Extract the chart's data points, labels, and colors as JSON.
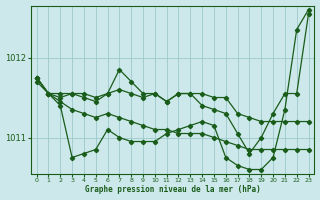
{
  "title": "Graphe pression niveau de la mer (hPa)",
  "bg_color": "#cce8ea",
  "grid_color": "#9cc8ca",
  "line_color": "#1a5c1a",
  "ylim": [
    1010.55,
    1012.65
  ],
  "xlim": [
    -0.5,
    23.5
  ],
  "yticks": [
    1011,
    1012
  ],
  "xticks": [
    0,
    1,
    2,
    3,
    4,
    5,
    6,
    7,
    8,
    9,
    10,
    11,
    12,
    13,
    14,
    15,
    16,
    17,
    18,
    19,
    20,
    21,
    22,
    23
  ],
  "series": [
    [
      1011.75,
      1011.55,
      1011.45,
      1011.35,
      1011.3,
      1011.25,
      1011.3,
      1011.25,
      1011.2,
      1011.15,
      1011.1,
      1011.1,
      1011.05,
      1011.05,
      1011.05,
      1011.0,
      1010.95,
      1010.9,
      1010.85,
      1010.85,
      1010.85,
      1010.85,
      1010.85,
      1010.85
    ],
    [
      1011.75,
      1011.55,
      1011.5,
      1011.55,
      1011.5,
      1011.45,
      1011.55,
      1011.85,
      1011.7,
      1011.55,
      1011.55,
      1011.45,
      1011.55,
      1011.55,
      1011.4,
      1011.35,
      1011.3,
      1011.05,
      1010.8,
      1011.0,
      1011.3,
      1011.55,
      1011.55,
      1012.55
    ],
    [
      1011.7,
      1011.55,
      1011.4,
      1010.75,
      1010.8,
      1010.85,
      1011.1,
      1011.0,
      1010.95,
      1010.95,
      1010.95,
      1011.05,
      1011.1,
      1011.15,
      1011.2,
      1011.15,
      1010.75,
      1010.65,
      1010.6,
      1010.6,
      1010.75,
      1011.35,
      1012.35,
      1012.6
    ],
    [
      1011.75,
      1011.55,
      1011.55,
      1011.55,
      1011.55,
      1011.5,
      1011.55,
      1011.6,
      1011.55,
      1011.5,
      1011.55,
      1011.45,
      1011.55,
      1011.55,
      1011.55,
      1011.5,
      1011.5,
      1011.3,
      1011.25,
      1011.2,
      1011.2,
      1011.2,
      1011.2,
      1011.2
    ]
  ]
}
